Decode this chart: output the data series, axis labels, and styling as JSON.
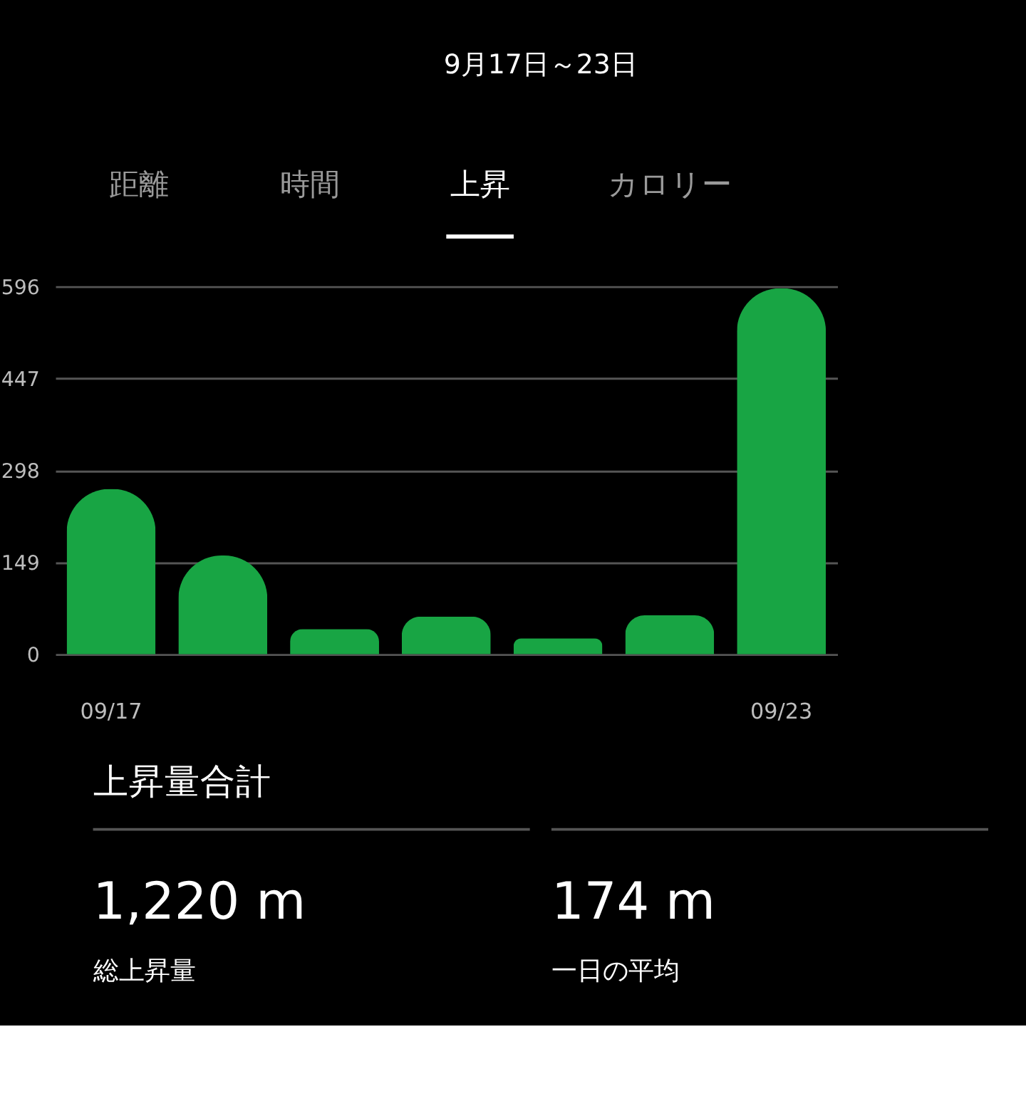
{
  "chart_data": {
    "type": "bar",
    "title": "9月17日～23日",
    "categories": [
      "09/17",
      null,
      null,
      null,
      null,
      null,
      "09/23"
    ],
    "values": [
      268,
      160,
      41,
      61,
      26,
      63,
      593
    ],
    "color": "#18a544",
    "ylim": [
      0,
      596
    ],
    "yticks": [
      0,
      149,
      298,
      447,
      596
    ],
    "grid": "y",
    "annotations": [
      "距離",
      "時間",
      "上昇",
      "カロリー",
      "上昇量合計",
      "1,220 m",
      "総上昇量",
      "174 m",
      "一日の平均"
    ]
  }
}
